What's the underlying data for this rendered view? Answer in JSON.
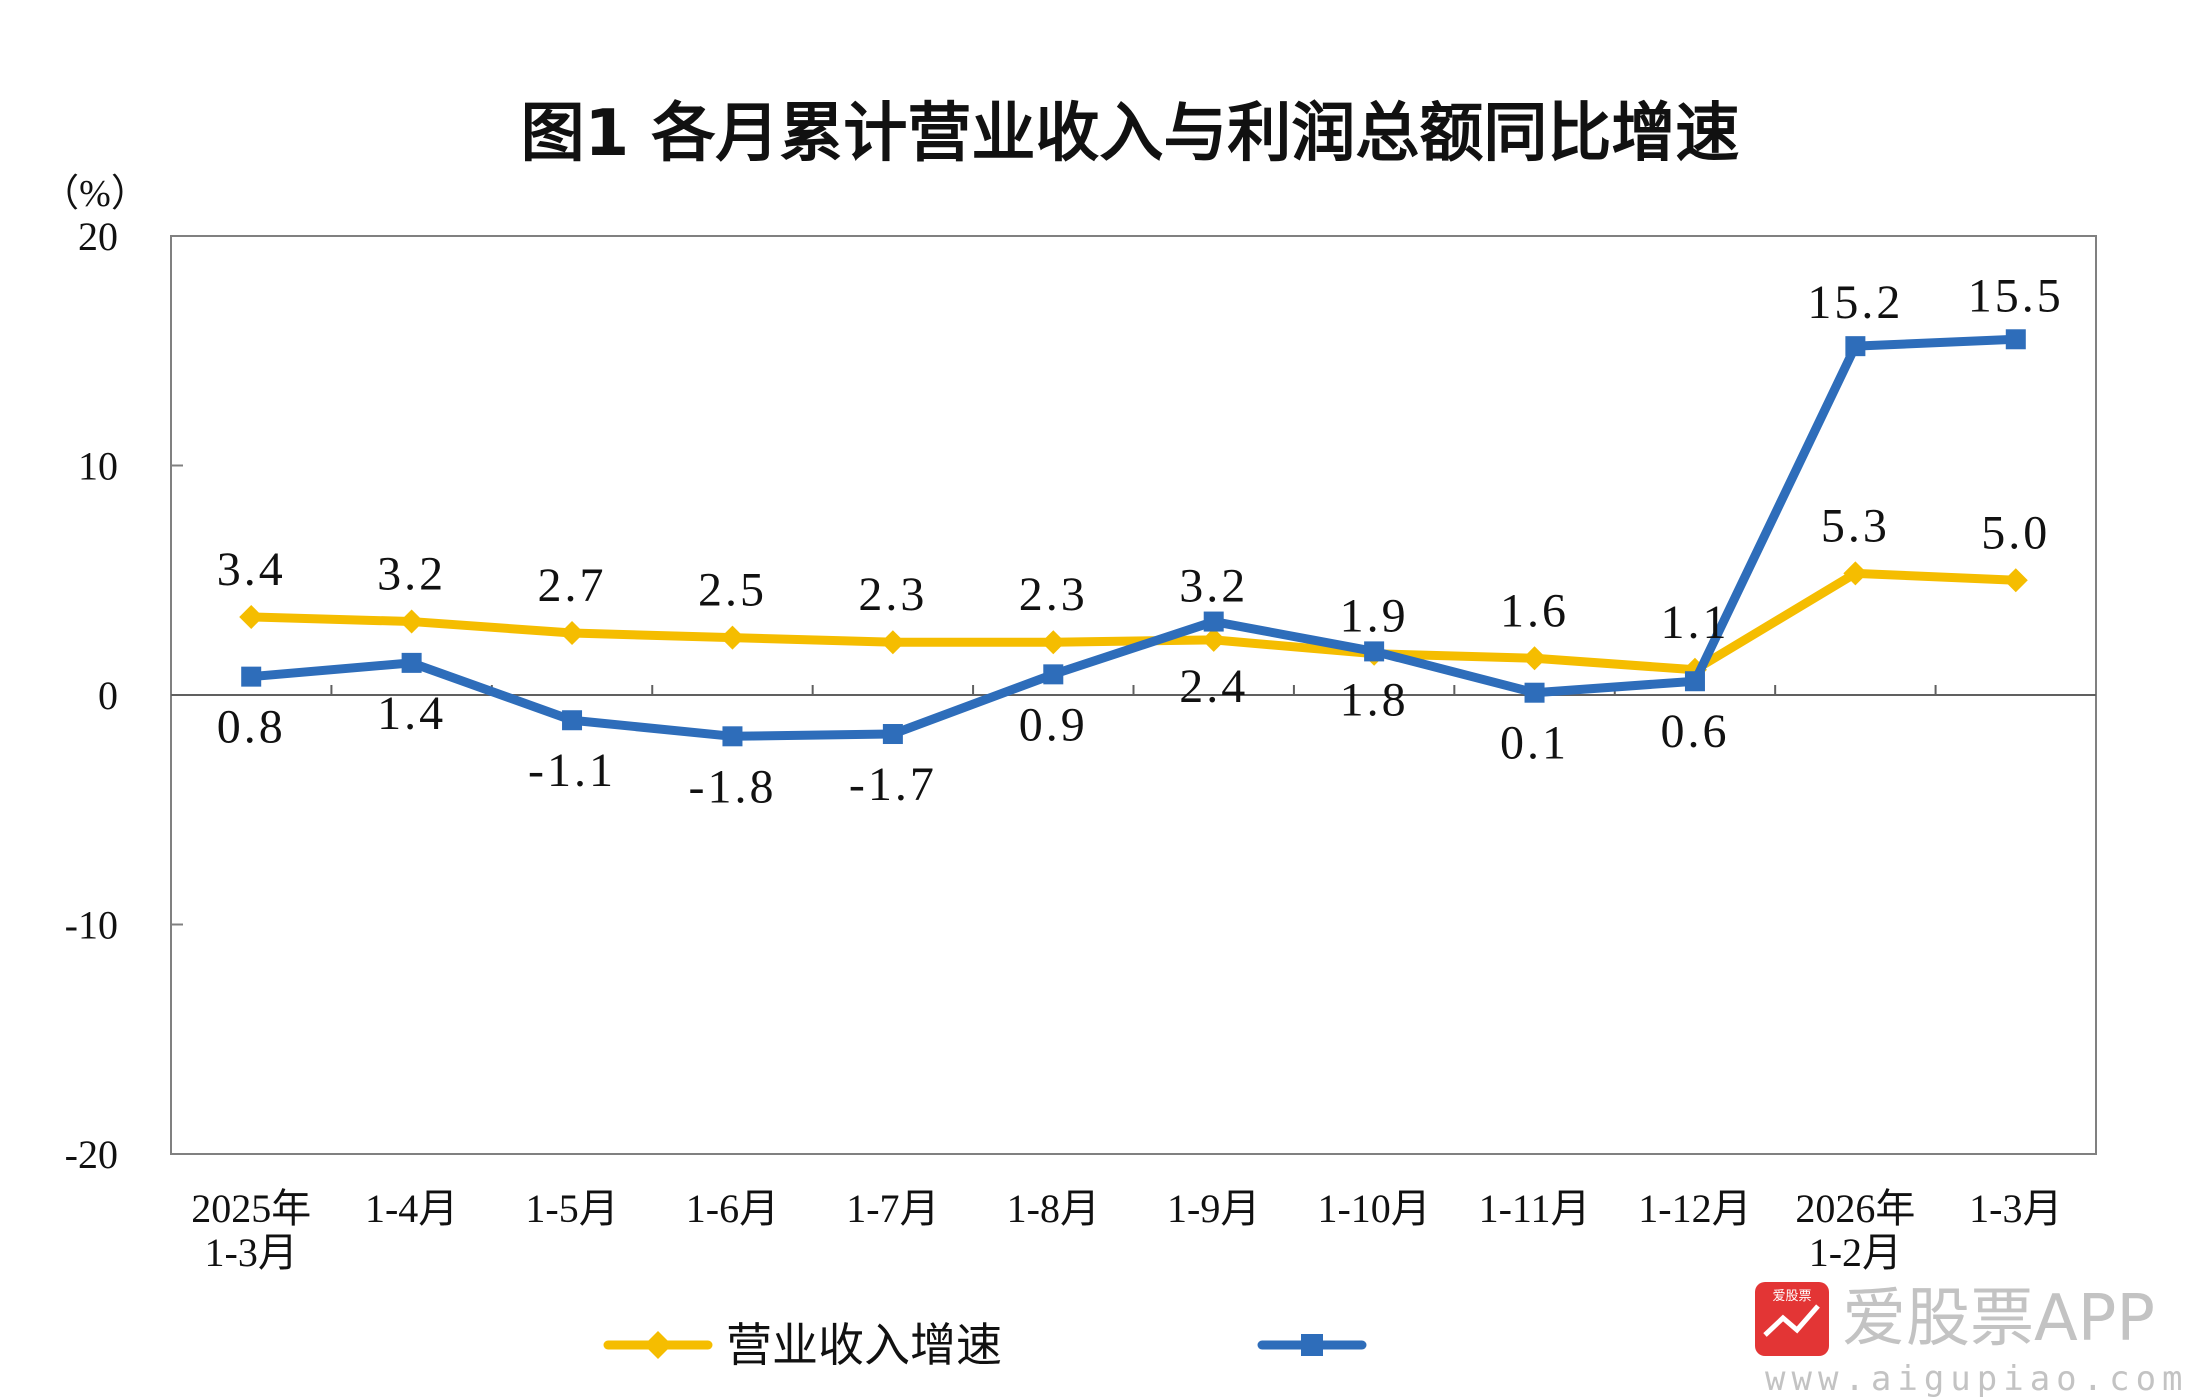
{
  "chart_data": {
    "type": "line",
    "title": "图1 各月累计营业收入与利润总额同比增速",
    "unit_label": "（%）",
    "ylim": [
      -20,
      20
    ],
    "yticks": [
      20,
      10,
      0,
      -10,
      -20
    ],
    "categories": [
      [
        "2025年",
        "1-3月"
      ],
      [
        "1-4月"
      ],
      [
        "1-5月"
      ],
      [
        "1-6月"
      ],
      [
        "1-7月"
      ],
      [
        "1-8月"
      ],
      [
        "1-9月"
      ],
      [
        "1-10月"
      ],
      [
        "1-11月"
      ],
      [
        "1-12月"
      ],
      [
        "2026年",
        "1-2月"
      ],
      [
        "1-3月"
      ]
    ],
    "series": [
      {
        "name": "营业收入增速",
        "color": "#f5bd00",
        "marker": "diamond",
        "values": [
          3.4,
          3.2,
          2.7,
          2.5,
          2.3,
          2.3,
          2.4,
          1.8,
          1.6,
          1.1,
          5.3,
          5.0
        ],
        "labels": [
          "3.4",
          "3.2",
          "2.7",
          "2.5",
          "2.3",
          "2.3",
          "2.4",
          "1.8",
          "1.6",
          "1.1",
          "5.3",
          "5.0"
        ]
      },
      {
        "name": "",
        "color": "#2e6dba",
        "marker": "square",
        "values": [
          0.8,
          1.4,
          -1.1,
          -1.8,
          -1.7,
          0.9,
          3.2,
          1.9,
          0.1,
          0.6,
          15.2,
          15.5
        ],
        "labels": [
          "0.8",
          "1.4",
          "-1.1",
          "-1.8",
          "-1.7",
          "0.9",
          "3.2",
          "1.9",
          "0.1",
          "0.6",
          "15.2",
          "15.5"
        ]
      }
    ],
    "grid": false,
    "legend_position": "bottom"
  },
  "watermark": {
    "brand": "爱股票APP",
    "url": "www.aigupiao.com",
    "logo_text": "爱股票",
    "logo_color": "#e02020"
  }
}
